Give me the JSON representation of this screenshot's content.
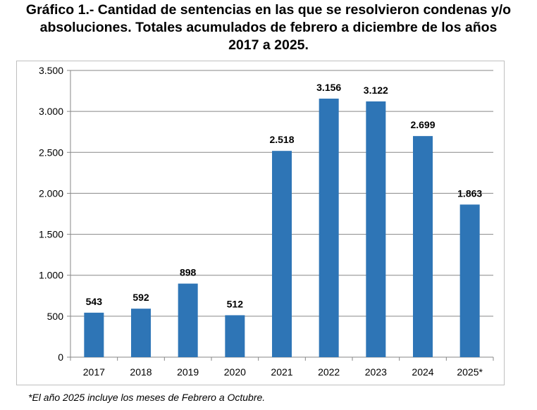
{
  "title_lines": [
    "Gráfico 1.- Cantidad de sentencias en las que se resolvieron condenas y/o",
    "absoluciones. Totales acumulados de febrero a diciembre de los años",
    "2017 a 2025."
  ],
  "footnote": "*El año 2025 incluye los meses de Febrero a Octubre.",
  "colors": {
    "bar": "#2e75b6",
    "grid": "#878787",
    "frame": "#bfbfbf"
  },
  "chart_data": {
    "type": "bar",
    "title": "Gráfico 1.- Cantidad de sentencias en las que se resolvieron condenas y/o absoluciones. Totales acumulados de febrero a diciembre de los años 2017 a 2025.",
    "categories": [
      "2017",
      "2018",
      "2019",
      "2020",
      "2021",
      "2022",
      "2023",
      "2024",
      "2025*"
    ],
    "values": [
      543,
      592,
      898,
      512,
      2518,
      3156,
      3122,
      2699,
      1863
    ],
    "value_labels": [
      "543",
      "592",
      "898",
      "512",
      "2.518",
      "3.156",
      "3.122",
      "2.699",
      "1.863"
    ],
    "yticks": [
      0,
      500,
      1000,
      1500,
      2000,
      2500,
      3000,
      3500
    ],
    "ytick_labels": [
      "0",
      "500",
      "1.000",
      "1.500",
      "2.000",
      "2.500",
      "3.000",
      "3.500"
    ],
    "ylim": [
      0,
      3500
    ],
    "xlabel": "",
    "ylabel": "",
    "grid": true,
    "legend": "none"
  }
}
